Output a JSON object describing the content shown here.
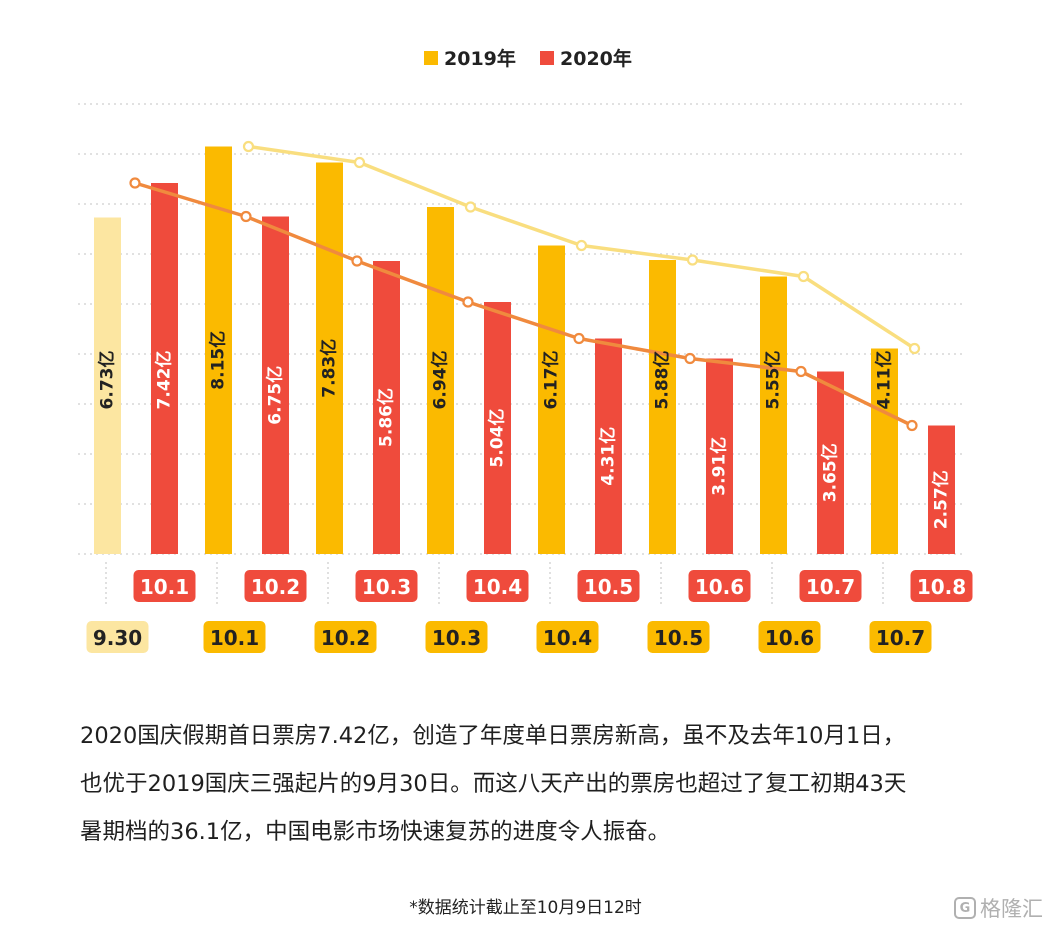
{
  "chart_data": {
    "type": "bar",
    "colors": {
      "y2019": "#FBBA00",
      "y2019_pre": "#FCE6A1",
      "y2020": "#EF4B3C",
      "line2019": "#F9DE7F",
      "line2020": "#F08A3E",
      "grid": "#cfcfcf"
    },
    "legend": {
      "placement": "top-center",
      "items": [
        "2019年",
        "2020年"
      ]
    },
    "series": [
      {
        "name": "2019年",
        "categories": [
          "9.30",
          "10.1",
          "10.2",
          "10.3",
          "10.4",
          "10.5",
          "10.6",
          "10.7"
        ],
        "values": [
          6.73,
          8.15,
          7.83,
          6.94,
          6.17,
          5.88,
          5.55,
          4.11
        ],
        "labels": [
          "6.73亿",
          "8.15亿",
          "7.83亿",
          "6.94亿",
          "6.17亿",
          "5.88亿",
          "5.55亿",
          "4.11亿"
        ]
      },
      {
        "name": "2020年",
        "categories": [
          "10.1",
          "10.2",
          "10.3",
          "10.4",
          "10.5",
          "10.6",
          "10.7",
          "10.8"
        ],
        "values": [
          7.42,
          6.75,
          5.86,
          5.04,
          4.31,
          3.91,
          3.65,
          2.57
        ],
        "labels": [
          "7.42亿",
          "6.75亿",
          "5.86亿",
          "5.04亿",
          "4.31亿",
          "3.91亿",
          "3.65亿",
          "2.57亿"
        ]
      }
    ],
    "ylim": [
      0,
      9
    ],
    "grid": true
  },
  "caption": [
    "2020国庆假期首日票房7.42亿，创造了年度单日票房新高，虽不及去年10月1日，",
    "也优于2019国庆三强起片的9月30日。而这八天产出的票房也超过了复工初期43天",
    "暑期档的36.1亿，中国电影市场快速复苏的进度令人振奋。"
  ],
  "footnote": "*数据统计截止至10月9日12时",
  "watermark": "格隆汇"
}
